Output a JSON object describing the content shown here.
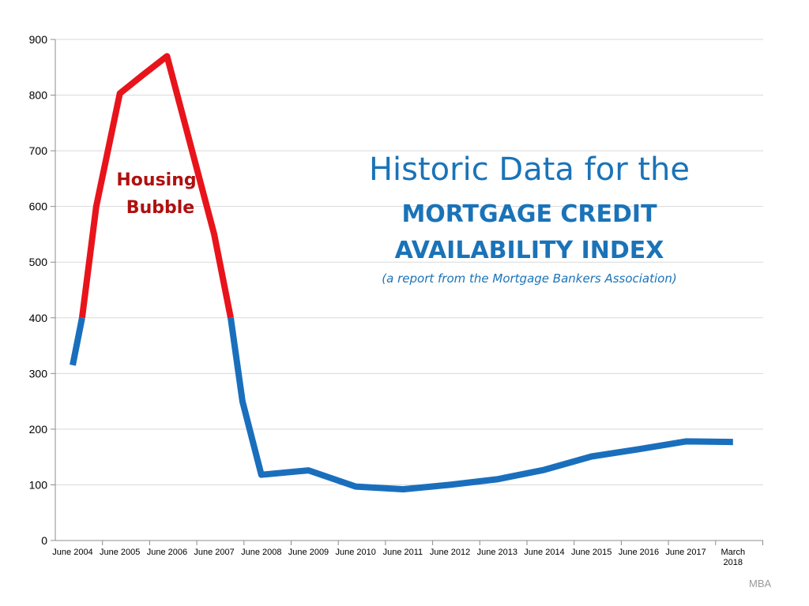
{
  "title": {
    "line1": "Historic Data for the",
    "line2": "MORTGAGE CREDIT",
    "line3": "AVAILABILITY INDEX",
    "subtitle": "(a report from the Mortgage Bankers Association)"
  },
  "annotation": {
    "line1": "Housing",
    "line2": "Bubble"
  },
  "source": "MBA",
  "colors": {
    "normal": "#1a6fbd",
    "bubble": "#e8141b",
    "title": "#1a73b8",
    "annotation": "#b01010",
    "grid": "#d9d9d9"
  },
  "chart_data": {
    "type": "line",
    "title": "Historic Data for the MORTGAGE CREDIT AVAILABILITY INDEX",
    "xlabel": "",
    "ylabel": "",
    "ylim": [
      0,
      900
    ],
    "yticks": [
      0,
      100,
      200,
      300,
      400,
      500,
      600,
      700,
      800,
      900
    ],
    "grid": true,
    "categories": [
      "June 2004",
      "June 2005",
      "June 2006",
      "June 2007",
      "June 2008",
      "June 2009",
      "June 2010",
      "June 2011",
      "June 2012",
      "June 2013",
      "June 2014",
      "June 2015",
      "June 2016",
      "June 2017",
      "March 2018"
    ],
    "bubble_threshold": 400,
    "series": [
      {
        "x": [
          0,
          0.2,
          0.5,
          1.0,
          1.5,
          2.0,
          2.5,
          3.0,
          3.35,
          3.6,
          4.0,
          5.0,
          6.0,
          7.0,
          8.0,
          9.0,
          10.0,
          11.0,
          12.0,
          13.0,
          14.0
        ],
        "values": [
          315,
          400,
          600,
          803,
          837,
          870,
          710,
          550,
          400,
          250,
          118,
          126,
          97,
          92,
          100,
          110,
          127,
          151,
          164,
          178,
          177
        ]
      }
    ]
  }
}
